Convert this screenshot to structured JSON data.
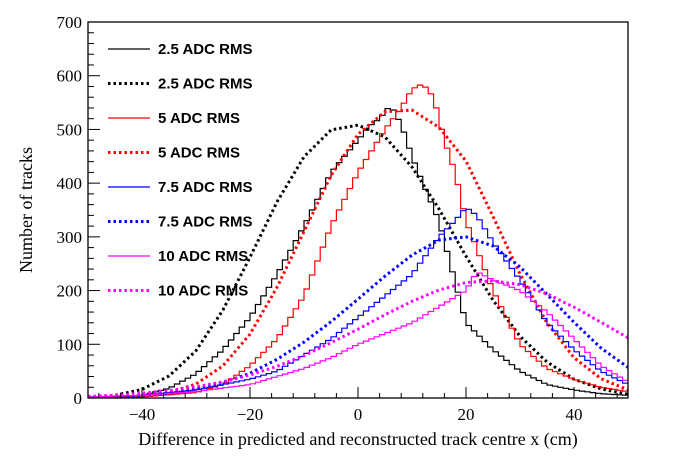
{
  "chart_data": {
    "type": "line",
    "title": "",
    "xlabel": "Difference in predicted and reconstructed track centre x (cm)",
    "ylabel": "Number of tracks",
    "xlim": [
      -50,
      50
    ],
    "ylim": [
      0,
      700
    ],
    "xticks": [
      -40,
      -20,
      0,
      20,
      40
    ],
    "xtick_labels": [
      "−40",
      "−20",
      "0",
      "20",
      "40"
    ],
    "yticks": [
      0,
      100,
      200,
      300,
      400,
      500,
      600,
      700
    ],
    "ytick_labels": [
      "0",
      "100",
      "200",
      "300",
      "400",
      "500",
      "600",
      "700"
    ],
    "grid": false,
    "legend_position": "top-left",
    "series": [
      {
        "name": "2.5 ADC RMS",
        "color": "#000000",
        "style": "histogram",
        "x": [
          -50,
          -45,
          -40,
          -35,
          -30,
          -25,
          -20,
          -15,
          -10,
          -5,
          0,
          2,
          4,
          6,
          8,
          10,
          12,
          15,
          20,
          25,
          30,
          35,
          40,
          45,
          50
        ],
        "y": [
          0,
          2,
          5,
          18,
          45,
          90,
          150,
          230,
          320,
          420,
          480,
          505,
          520,
          545,
          510,
          450,
          400,
          330,
          140,
          90,
          50,
          25,
          15,
          8,
          5
        ]
      },
      {
        "name": "2.5 ADC RMS",
        "color": "#000000",
        "style": "dotted",
        "x": [
          -50,
          -45,
          -40,
          -35,
          -30,
          -25,
          -20,
          -15,
          -10,
          -5,
          0,
          5,
          10,
          15,
          20,
          25,
          30,
          35,
          40,
          45,
          50
        ],
        "y": [
          1,
          5,
          16,
          41,
          88,
          164,
          262,
          365,
          449,
          499,
          508,
          486,
          430,
          352,
          264,
          182,
          115,
          67,
          35,
          17,
          7
        ]
      },
      {
        "name": "5 ADC RMS",
        "color": "#ff0000",
        "style": "histogram",
        "x": [
          -50,
          -40,
          -30,
          -25,
          -20,
          -15,
          -10,
          -5,
          0,
          5,
          8,
          10,
          12,
          14,
          16,
          18,
          20,
          25,
          30,
          35,
          40,
          45,
          50
        ],
        "y": [
          0,
          2,
          10,
          25,
          60,
          110,
          190,
          320,
          420,
          500,
          540,
          575,
          585,
          560,
          480,
          420,
          330,
          200,
          100,
          55,
          35,
          20,
          12
        ]
      },
      {
        "name": "5 ADC RMS",
        "color": "#ff0000",
        "style": "dotted",
        "x": [
          -50,
          -45,
          -40,
          -35,
          -30,
          -25,
          -20,
          -15,
          -10,
          -5,
          0,
          5,
          10,
          15,
          20,
          25,
          30,
          35,
          40,
          45,
          50
        ],
        "y": [
          0,
          1,
          4,
          10,
          26,
          60,
          119,
          206,
          310,
          414,
          491,
          533,
          536,
          504,
          441,
          338,
          231,
          140,
          75,
          36,
          15
        ]
      },
      {
        "name": "7.5 ADC RMS",
        "color": "#0000ff",
        "style": "histogram",
        "x": [
          -50,
          -40,
          -30,
          -25,
          -20,
          -15,
          -10,
          -5,
          0,
          5,
          10,
          15,
          18,
          20,
          22,
          25,
          30,
          35,
          40,
          45,
          50
        ],
        "y": [
          2,
          5,
          15,
          25,
          35,
          50,
          80,
          110,
          150,
          190,
          230,
          300,
          330,
          355,
          340,
          290,
          220,
          140,
          90,
          50,
          25
        ]
      },
      {
        "name": "7.5 ADC RMS",
        "color": "#0000ff",
        "style": "dotted",
        "x": [
          -50,
          -45,
          -40,
          -35,
          -30,
          -25,
          -20,
          -15,
          -10,
          -5,
          0,
          5,
          10,
          15,
          20,
          25,
          30,
          35,
          40,
          45,
          50
        ],
        "y": [
          1,
          2,
          5,
          9,
          17,
          29,
          46,
          72,
          104,
          142,
          184,
          227,
          266,
          294,
          300,
          283,
          244,
          193,
          141,
          93,
          57
        ]
      },
      {
        "name": "10 ADC RMS",
        "color": "#ff00ff",
        "style": "histogram",
        "x": [
          -50,
          -40,
          -30,
          -20,
          -15,
          -10,
          -5,
          0,
          5,
          10,
          15,
          20,
          22,
          25,
          30,
          35,
          40,
          45,
          50
        ],
        "y": [
          2,
          5,
          12,
          25,
          40,
          55,
          75,
          100,
          120,
          140,
          170,
          200,
          235,
          220,
          200,
          160,
          110,
          60,
          30
        ]
      },
      {
        "name": "10 ADC RMS",
        "color": "#ff00ff",
        "style": "dotted",
        "x": [
          -50,
          -45,
          -40,
          -35,
          -30,
          -25,
          -20,
          -15,
          -10,
          -5,
          0,
          5,
          10,
          15,
          20,
          25,
          30,
          35,
          40,
          45,
          50
        ],
        "y": [
          3,
          5,
          9,
          14,
          21,
          30,
          43,
          59,
          79,
          103,
          128,
          155,
          180,
          201,
          215,
          218,
          211,
          194,
          169,
          141,
          112
        ]
      }
    ]
  }
}
